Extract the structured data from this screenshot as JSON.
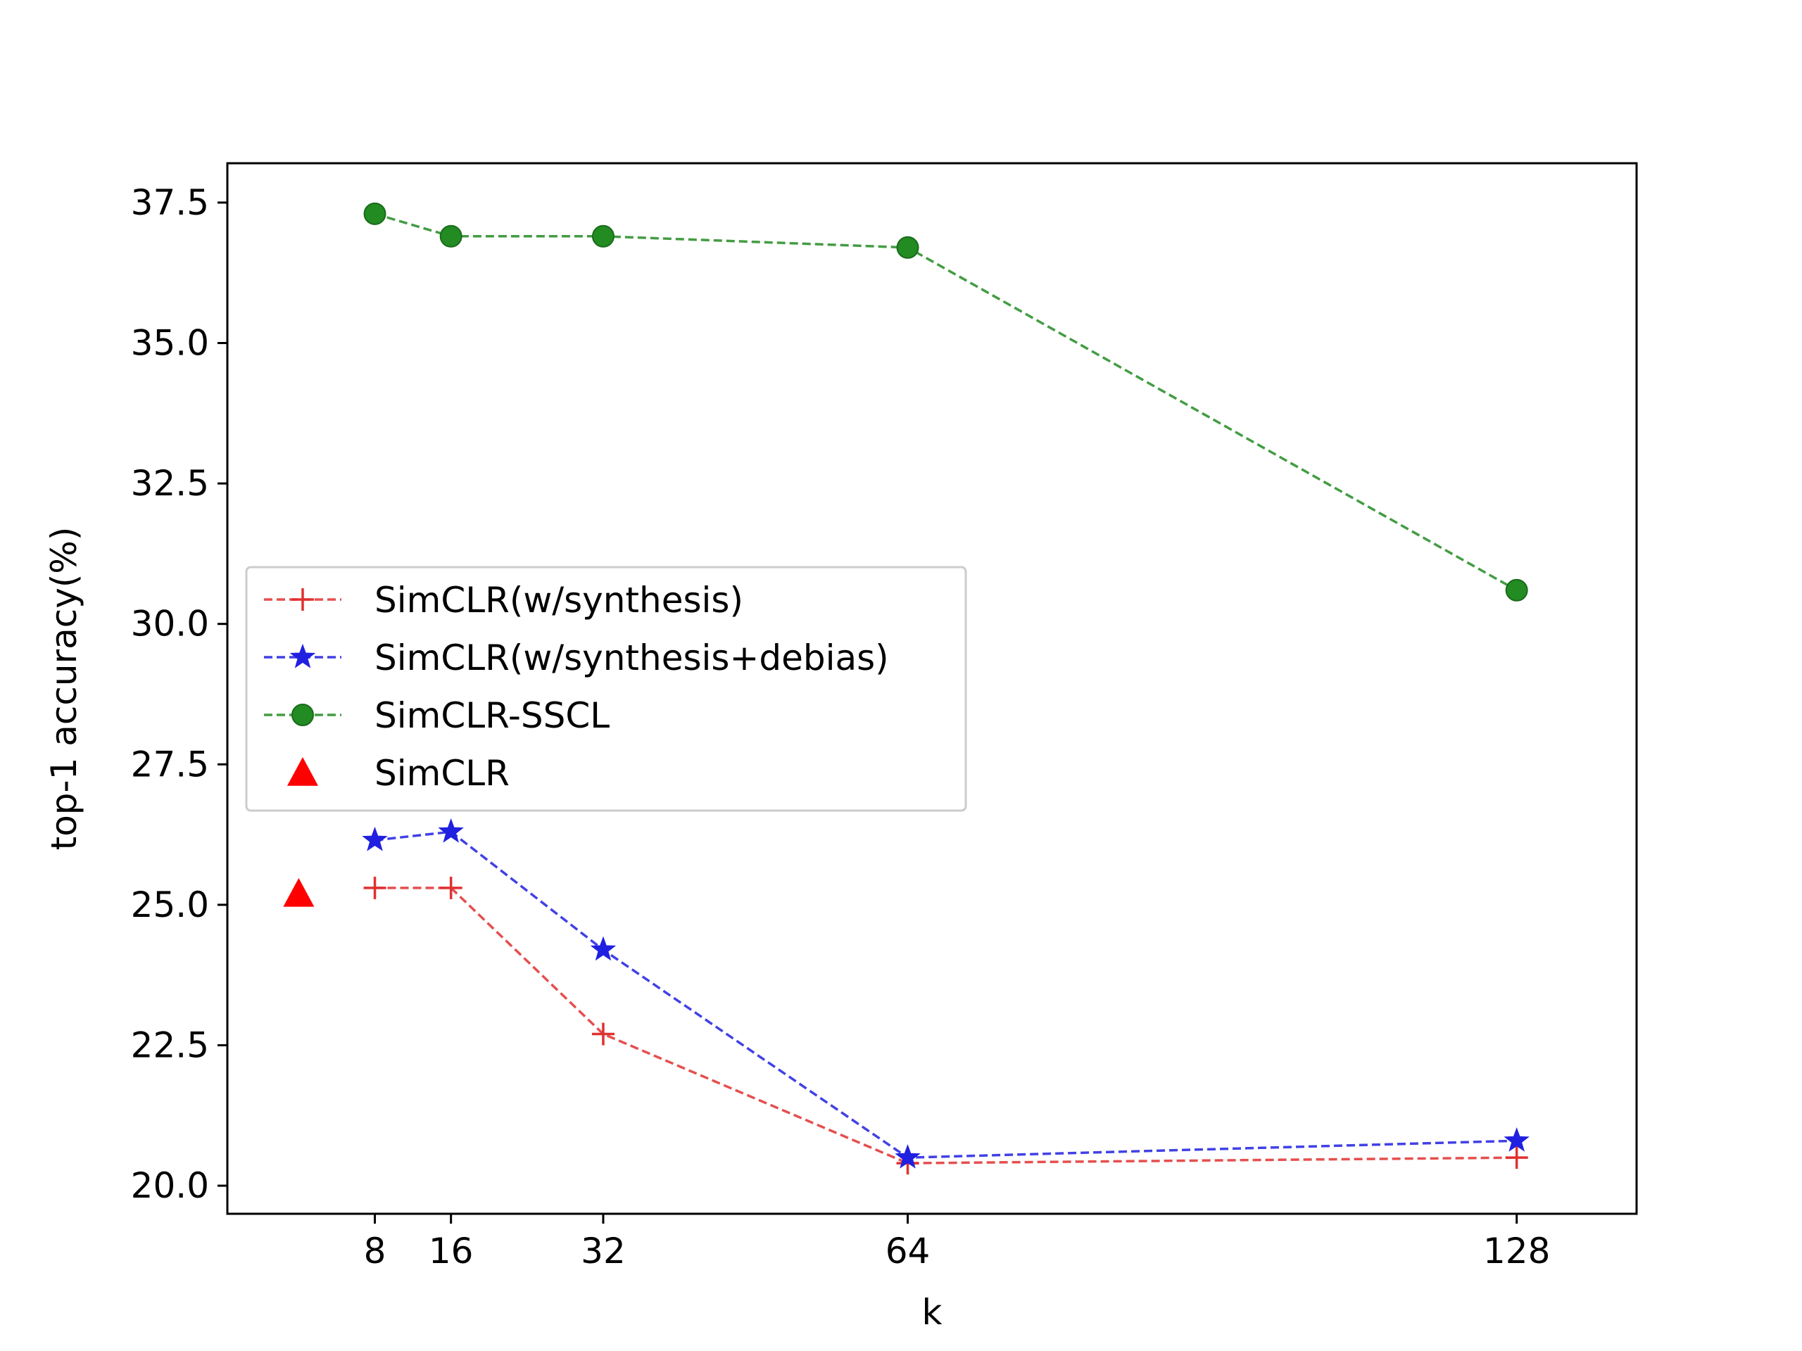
{
  "chart_data": {
    "type": "line",
    "title": "",
    "xlabel": "k",
    "ylabel": "top-1 accuracy(%)",
    "xlim": [
      -7.5,
      140.6
    ],
    "ylim": [
      19.5,
      38.2
    ],
    "xticks": [
      8,
      16,
      32,
      64,
      128
    ],
    "xtick_labels": [
      "8",
      "16",
      "32",
      "64",
      "128"
    ],
    "yticks": [
      20.0,
      22.5,
      25.0,
      27.5,
      30.0,
      32.5,
      35.0,
      37.5
    ],
    "ytick_labels": [
      "20.0",
      "22.5",
      "25.0",
      "27.5",
      "30.0",
      "32.5",
      "35.0",
      "37.5"
    ],
    "grid": false,
    "legend_position": "center-left",
    "series": [
      {
        "name": "SimCLR(w/synthesis)",
        "color": "#e03030",
        "marker": "plus",
        "linestyle": "dashed",
        "x": [
          8,
          16,
          32,
          64,
          128
        ],
        "y": [
          25.3,
          25.3,
          22.7,
          20.4,
          20.5
        ]
      },
      {
        "name": "SimCLR(w/synthesis+debias)",
        "color": "#2020e0",
        "marker": "star",
        "linestyle": "dashed",
        "x": [
          8,
          16,
          32,
          64,
          128
        ],
        "y": [
          26.15,
          26.3,
          24.2,
          20.5,
          20.8
        ]
      },
      {
        "name": "SimCLR-SSCL",
        "color": "#228b22",
        "marker": "circle",
        "linestyle": "dashed",
        "x": [
          8,
          16,
          32,
          64,
          128
        ],
        "y": [
          37.3,
          36.9,
          36.9,
          36.7,
          30.6
        ]
      },
      {
        "name": "SimCLR",
        "color": "#ff0000",
        "marker": "triangle",
        "linestyle": "none",
        "x": [
          0
        ],
        "y": [
          25.2
        ]
      }
    ]
  }
}
